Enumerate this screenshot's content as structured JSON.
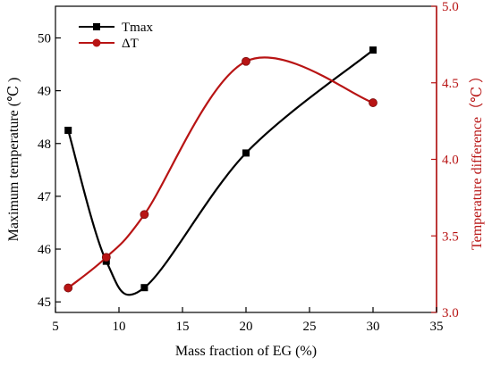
{
  "chart_data": {
    "type": "line",
    "xlabel": "Mass fraction of EG (%)",
    "ylabel_left": "Maximum temperature (℃ )",
    "ylabel_right": "Temperature difference（℃ ）",
    "xlim": [
      5,
      35
    ],
    "ylim_left": [
      44.8,
      50.6
    ],
    "ylim_right": [
      3.0,
      5.0
    ],
    "xticks": [
      "5",
      "10",
      "15",
      "20",
      "25",
      "30",
      "35"
    ],
    "yticks_left": [
      "45",
      "46",
      "47",
      "48",
      "49",
      "50"
    ],
    "yticks_right": [
      "3.0",
      "3.5",
      "4.0",
      "4.5",
      "5.0"
    ],
    "grid": false,
    "legend_position": "top-left",
    "colors": {
      "series1": "#000000",
      "series2": "#b81414"
    },
    "series": [
      {
        "name": "Tmax",
        "axis": "left",
        "marker": "square",
        "x": [
          6,
          9,
          12,
          20,
          30
        ],
        "y": [
          48.25,
          45.77,
          45.27,
          47.82,
          49.77
        ]
      },
      {
        "name": "ΔT",
        "axis": "right",
        "marker": "circle",
        "x": [
          6,
          9,
          12,
          20,
          30
        ],
        "y": [
          3.16,
          3.36,
          3.64,
          4.64,
          4.37
        ]
      }
    ]
  }
}
